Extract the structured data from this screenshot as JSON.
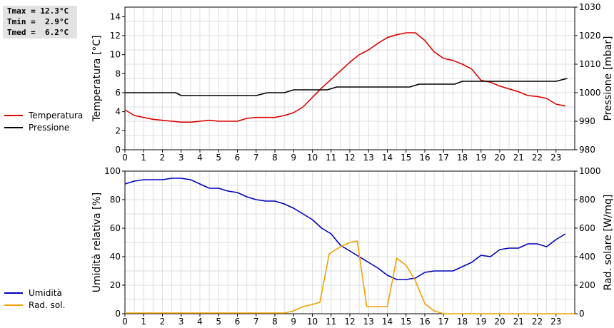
{
  "stats": {
    "tmax": "Tmax = 12.3°C",
    "tmin": "Tmin =  2.9°C",
    "tmed": "Tmed =  6.2°C"
  },
  "chart_data": [
    {
      "type": "line",
      "xlim": [
        0,
        24
      ],
      "x_ticks": [
        "0",
        "1",
        "2",
        "3",
        "4",
        "5",
        "6",
        "7",
        "8",
        "9",
        "10",
        "11",
        "12",
        "13",
        "14",
        "15",
        "16",
        "17",
        "18",
        "19",
        "20",
        "21",
        "22",
        "23"
      ],
      "ylabel": "Temperatura [°C]",
      "ylim": [
        0,
        15
      ],
      "y_ticks": [
        "0",
        "2",
        "4",
        "6",
        "8",
        "10",
        "12",
        "14"
      ],
      "y2label": "Pressione [mbar]",
      "y2lim": [
        980,
        1030
      ],
      "y2_ticks": [
        "980",
        "990",
        "1000",
        "1010",
        "1020",
        "1030"
      ],
      "grid": true,
      "legend_position": "left",
      "series": [
        {
          "name": "Temperatura",
          "axis": "left",
          "color": "#dd0000",
          "x": [
            0,
            0.5,
            1,
            1.5,
            2,
            2.5,
            3,
            3.5,
            4,
            4.5,
            5,
            5.5,
            6,
            6.5,
            7,
            7.5,
            8,
            8.5,
            9,
            9.5,
            10,
            10.5,
            11,
            11.5,
            12,
            12.5,
            13,
            13.5,
            14,
            14.5,
            15,
            15.5,
            16,
            16.5,
            17,
            17.5,
            18,
            18.5,
            19,
            19.5,
            20,
            20.5,
            21,
            21.5,
            22,
            22.5,
            23,
            23.5
          ],
          "y": [
            4.2,
            3.6,
            3.4,
            3.2,
            3.1,
            3.0,
            2.9,
            2.9,
            3.0,
            3.1,
            3.0,
            3.0,
            3.0,
            3.3,
            3.4,
            3.4,
            3.4,
            3.6,
            3.9,
            4.5,
            5.5,
            6.5,
            7.4,
            8.3,
            9.2,
            10.0,
            10.5,
            11.2,
            11.8,
            12.1,
            12.3,
            12.3,
            11.5,
            10.3,
            9.6,
            9.4,
            9.0,
            8.5,
            7.3,
            7.1,
            6.7,
            6.4,
            6.1,
            5.7,
            5.6,
            5.4,
            4.8,
            4.6
          ]
        },
        {
          "name": "Pressione",
          "axis": "right",
          "color": "#000000",
          "x": [
            0,
            2.7,
            3.0,
            7.0,
            7.6,
            8.5,
            9.0,
            10.8,
            11.3,
            15.2,
            15.7,
            17.6,
            18.0,
            19.2,
            19.5,
            23.0,
            23.6
          ],
          "y": [
            1000,
            1000,
            999,
            999,
            1000,
            1000,
            1001,
            1001,
            1002,
            1002,
            1003,
            1003,
            1004,
            1004,
            1004,
            1004,
            1005
          ]
        }
      ]
    },
    {
      "type": "line",
      "xlim": [
        0,
        24
      ],
      "x_ticks": [
        "0",
        "1",
        "2",
        "3",
        "4",
        "5",
        "6",
        "7",
        "8",
        "9",
        "10",
        "11",
        "12",
        "13",
        "14",
        "15",
        "16",
        "17",
        "18",
        "19",
        "20",
        "21",
        "22",
        "23"
      ],
      "ylabel": "Umidità relativa [%]",
      "ylim": [
        0,
        100
      ],
      "y_ticks": [
        "0",
        "20",
        "40",
        "60",
        "80",
        "100"
      ],
      "y2label": "Rad. solare [W/mq]",
      "y2lim": [
        0,
        1000
      ],
      "y2_ticks": [
        "0",
        "200",
        "400",
        "600",
        "800",
        "1000"
      ],
      "grid": true,
      "legend_position": "left",
      "series": [
        {
          "name": "Umidità",
          "axis": "left",
          "color": "#0000bb",
          "x": [
            0,
            0.5,
            1,
            1.5,
            2,
            2.5,
            3,
            3.5,
            4,
            4.5,
            5,
            5.5,
            6,
            6.5,
            7,
            7.5,
            8,
            8.5,
            9,
            9.5,
            10,
            10.5,
            11,
            11.5,
            12,
            12.5,
            13,
            13.5,
            14,
            14.5,
            15,
            15.5,
            16,
            16.5,
            17,
            17.5,
            18,
            18.5,
            19,
            19.5,
            20,
            20.5,
            21,
            21.5,
            22,
            22.5,
            23,
            23.5
          ],
          "y": [
            91,
            93,
            94,
            94,
            94,
            95,
            95,
            94,
            91,
            88,
            88,
            86,
            85,
            82,
            80,
            79,
            79,
            77,
            74,
            70,
            66,
            60,
            56,
            48,
            44,
            40,
            36,
            32,
            27,
            24,
            24,
            25,
            29,
            30,
            30,
            30,
            33,
            36,
            41,
            40,
            45,
            46,
            46,
            49,
            49,
            47,
            52,
            56
          ]
        },
        {
          "name": "Rad. sol.",
          "axis": "right",
          "color": "#f0a000",
          "x": [
            0,
            8.5,
            9,
            9.5,
            10,
            10.4,
            10.9,
            11.5,
            12,
            12.4,
            12.9,
            13.5,
            14.0,
            14.5,
            15,
            15.5,
            16,
            16.5,
            17,
            18,
            24
          ],
          "y": [
            5,
            5,
            20,
            50,
            65,
            80,
            420,
            470,
            500,
            510,
            50,
            50,
            50,
            390,
            340,
            230,
            70,
            20,
            0,
            0,
            0
          ]
        }
      ]
    }
  ]
}
